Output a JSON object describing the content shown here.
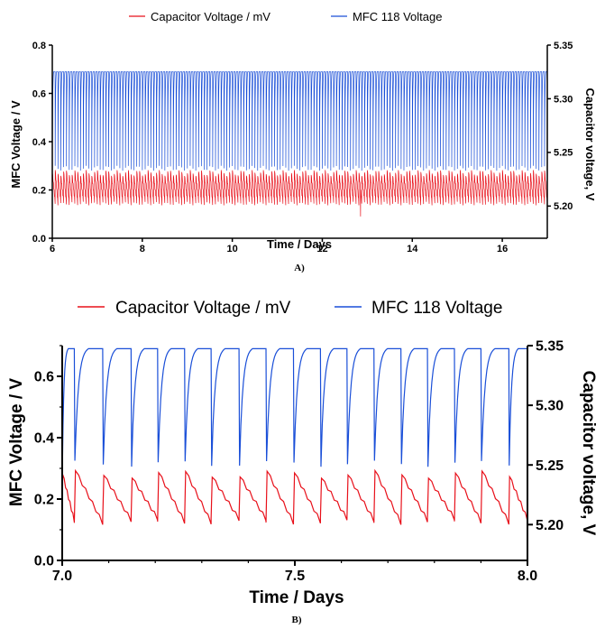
{
  "chart_data": [
    {
      "type": "line",
      "panel_label": "A)",
      "xlabel": "Time / Days",
      "ylabel": "MFC Voltage / V",
      "y2label": "Capacitor voltage, V",
      "xlim": [
        6,
        17
      ],
      "ylim": [
        0,
        0.8
      ],
      "y2lim": [
        5.17,
        5.35
      ],
      "x_ticks": [
        6,
        8,
        10,
        12,
        14,
        16
      ],
      "y_ticks": [
        0.0,
        0.2,
        0.4,
        0.6,
        0.8
      ],
      "y_tick_labels": [
        "0.0",
        "0.2",
        "0.4",
        "0.6",
        "0.8"
      ],
      "y2_ticks": [
        5.2,
        5.25,
        5.3,
        5.35
      ],
      "y2_tick_labels": [
        "5.20",
        "5.25",
        "5.30",
        "5.35"
      ],
      "legend_position": "top",
      "series": [
        {
          "name": "Capacitor Voltage / mV",
          "color": "#e8101a",
          "axis": "left",
          "pattern": "sawtooth",
          "x_start": 6.0,
          "x_end": 17.0,
          "period_days": 0.0625,
          "high": 0.27,
          "low": 0.15,
          "min_spike": {
            "x": 12.85,
            "y": 0.09
          }
        },
        {
          "name": "MFC 118 Voltage",
          "color": "#1a4fd8",
          "axis": "left",
          "pattern": "charge-discharge",
          "x_start": 6.0,
          "x_end": 17.0,
          "period_days": 0.0625,
          "high": 0.69,
          "low": 0.29
        }
      ]
    },
    {
      "type": "line",
      "panel_label": "B)",
      "xlabel": "Time / Days",
      "ylabel": "MFC Voltage / V",
      "y2label": "Capacitor voltage, V",
      "xlim": [
        7.0,
        8.0
      ],
      "ylim": [
        0,
        0.7
      ],
      "y2lim": [
        5.17,
        5.35
      ],
      "x_ticks": [
        7.0,
        7.5,
        8.0
      ],
      "x_tick_labels": [
        "7.0",
        "7.5",
        "8.0"
      ],
      "y_ticks": [
        0.0,
        0.2,
        0.4,
        0.6
      ],
      "y_tick_labels": [
        "0.0",
        "0.2",
        "0.4",
        "0.6"
      ],
      "y2_ticks": [
        5.2,
        5.25,
        5.3,
        5.35
      ],
      "y2_tick_labels": [
        "5.20",
        "5.25",
        "5.30",
        "5.35"
      ],
      "legend_position": "top",
      "series": [
        {
          "name": "Capacitor Voltage / mV",
          "color": "#e8101a",
          "axis": "left",
          "pattern": "sawtooth",
          "x_start": 7.0,
          "x_end": 8.0,
          "drop_times": [
            7.0,
            7.026,
            7.087,
            7.148,
            7.205,
            7.263,
            7.32,
            7.38,
            7.438,
            7.497,
            7.555,
            7.612,
            7.67,
            7.728,
            7.785,
            7.843,
            7.9,
            7.96,
            8.0
          ],
          "high": 0.28,
          "low": 0.13
        },
        {
          "name": "MFC 118 Voltage",
          "color": "#1a4fd8",
          "axis": "left",
          "pattern": "charge-discharge",
          "x_start": 7.0,
          "x_end": 8.0,
          "drop_times": [
            7.0,
            7.026,
            7.087,
            7.148,
            7.205,
            7.263,
            7.32,
            7.38,
            7.438,
            7.497,
            7.555,
            7.612,
            7.67,
            7.728,
            7.785,
            7.843,
            7.9,
            7.96,
            8.0
          ],
          "high": 0.69,
          "low": 0.315
        }
      ]
    }
  ]
}
